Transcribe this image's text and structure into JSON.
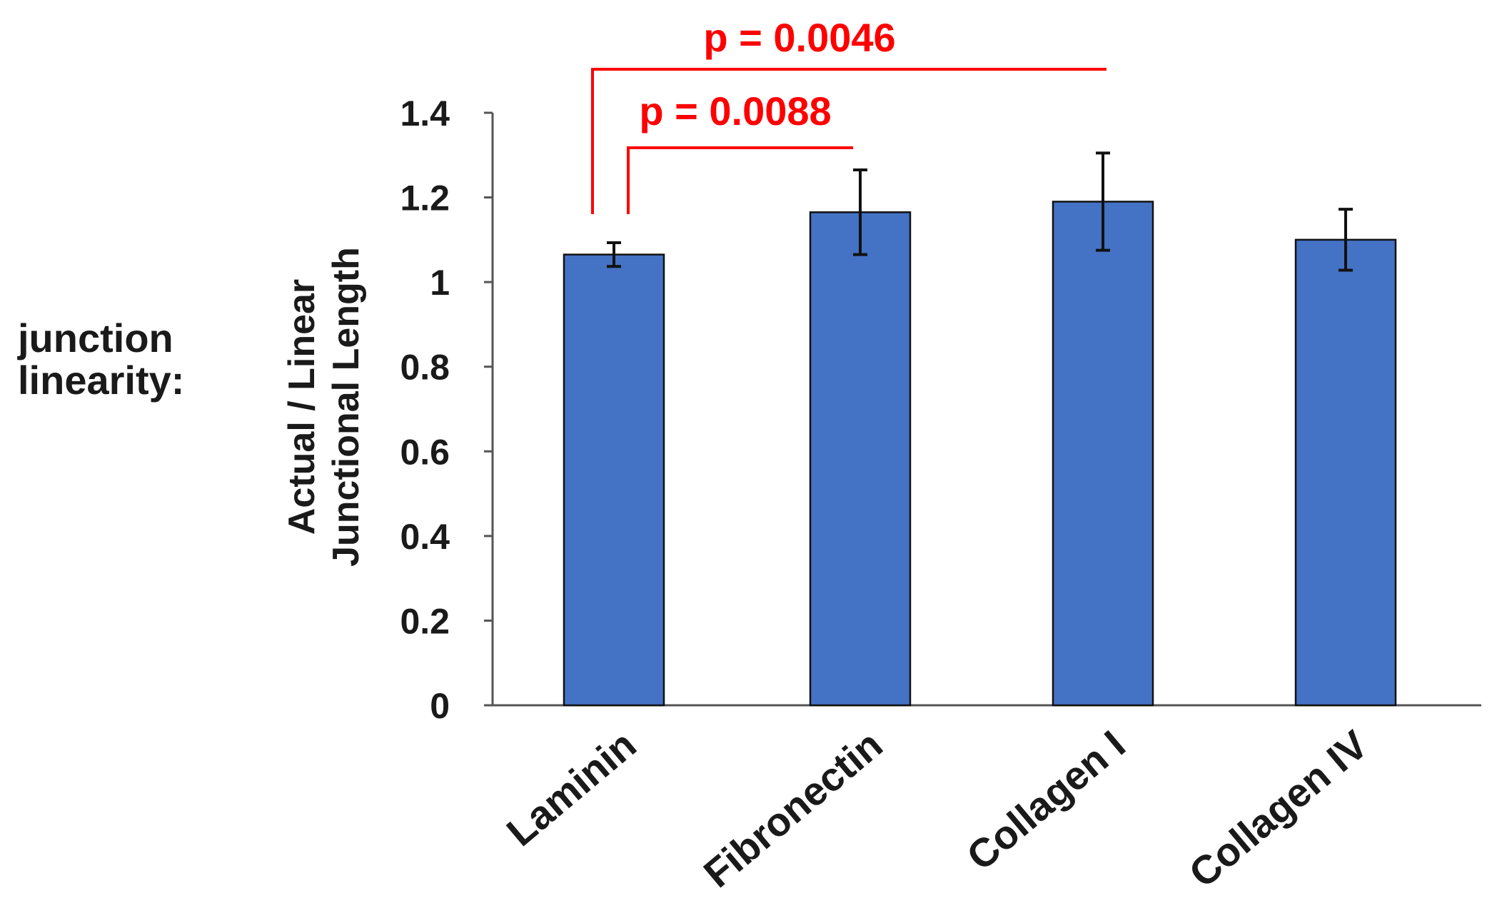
{
  "figure": {
    "side_label_lines": [
      "junction",
      "linearity:"
    ]
  },
  "chart_data": {
    "type": "bar",
    "categories": [
      "Laminin",
      "Fibronectin",
      "Collagen I",
      "Collagen IV"
    ],
    "values": [
      1.065,
      1.165,
      1.19,
      1.1
    ],
    "errors": [
      0.028,
      0.1,
      0.115,
      0.072
    ],
    "bar_color": "#4472C4",
    "ylabel_lines": [
      "Actual / Linear",
      "Junctional Length"
    ],
    "xlabel": "",
    "ylim": [
      0,
      1.4
    ],
    "yticks": [
      0,
      0.2,
      0.4,
      0.6,
      0.8,
      1,
      1.2,
      1.4
    ],
    "ytick_labels": [
      "0",
      "0.2",
      "0.4",
      "0.6",
      "0.8",
      "1",
      "1.2",
      "1.4"
    ],
    "grid": false,
    "annotations": [
      {
        "text": "p = 0.0088",
        "from": "Laminin",
        "to": "Fibronectin",
        "color": "#FF0000"
      },
      {
        "text": "p = 0.0046",
        "from": "Laminin",
        "to": "Collagen I",
        "color": "#FF0000"
      }
    ]
  }
}
